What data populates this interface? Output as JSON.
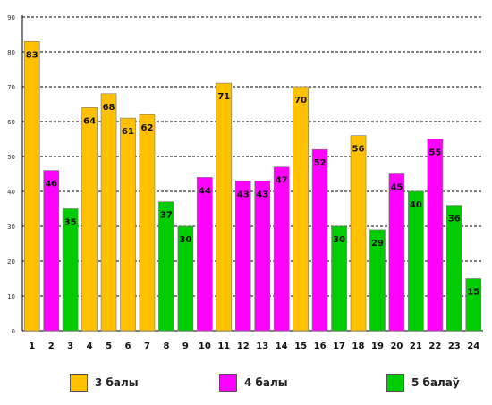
{
  "chart_data": {
    "type": "bar",
    "categories": [
      "1",
      "2",
      "3",
      "4",
      "5",
      "6",
      "7",
      "8",
      "9",
      "10",
      "11",
      "12",
      "13",
      "14",
      "15",
      "16",
      "17",
      "18",
      "19",
      "20",
      "21",
      "22",
      "23",
      "24"
    ],
    "values": [
      83,
      46,
      35,
      64,
      68,
      61,
      62,
      37,
      30,
      44,
      71,
      43,
      43,
      47,
      70,
      52,
      30,
      56,
      29,
      45,
      40,
      55,
      36,
      15
    ],
    "groups": [
      0,
      1,
      2,
      0,
      0,
      0,
      0,
      2,
      2,
      1,
      0,
      1,
      1,
      1,
      0,
      1,
      2,
      0,
      2,
      1,
      2,
      1,
      2,
      2
    ],
    "ylim": [
      0,
      90
    ],
    "yticks": [
      "0",
      "10",
      "20",
      "30",
      "40",
      "50",
      "60",
      "70",
      "80",
      "90"
    ],
    "grid": true,
    "legend_position": "bottom",
    "legend": [
      {
        "label": "3 балы",
        "color": "#FFC000"
      },
      {
        "label": "4 балы",
        "color": "#FF00FF"
      },
      {
        "label": "5 балаў",
        "color": "#00CC00"
      }
    ]
  }
}
